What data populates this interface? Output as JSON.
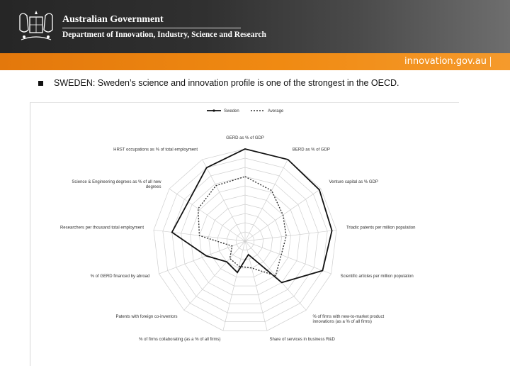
{
  "header": {
    "gov_title": "Australian Government",
    "dept_title": "Department of Innovation, Industry, Science and Research",
    "site_url": "innovation.gov.au",
    "crest_icon": "coat-of-arms-icon"
  },
  "colors": {
    "banner": "#2b2b2b",
    "accent_bar": "#f08a12"
  },
  "content": {
    "bullet_text": "SWEDEN: Sweden’s science and innovation profile is one of the strongest in the OECD."
  },
  "chart_data": {
    "type": "radar",
    "legend": [
      "Sweden",
      "Average"
    ],
    "legend_position": "top",
    "grid": true,
    "rings": 10,
    "axes": [
      "GERD as % of GDP",
      "BERD as % of GDP",
      "Venture capital as % GDP",
      "Triadic patents per million population",
      "Scientific articles per million population",
      "% of firms with new-to-market product innovations (as a % of all firms)",
      "Share of services in business R&D",
      "% of firms collaborating (as a % of all firms)",
      "Patents with foreign co-inventors",
      "% of GERD financed by abroad",
      "Researchers per thousand total employment",
      "Science & Engineering degrees as % of all new degrees",
      "HRST occupations as % of total employment"
    ],
    "series": [
      {
        "name": "Sweden",
        "values": [
          1.0,
          1.0,
          0.98,
          0.95,
          0.9,
          0.6,
          0.15,
          0.35,
          0.3,
          0.45,
          0.8,
          0.75,
          0.9
        ]
      },
      {
        "name": "Average",
        "values": [
          0.7,
          0.62,
          0.5,
          0.45,
          0.42,
          0.5,
          0.3,
          0.28,
          0.25,
          0.15,
          0.5,
          0.62,
          0.68
        ]
      }
    ]
  }
}
